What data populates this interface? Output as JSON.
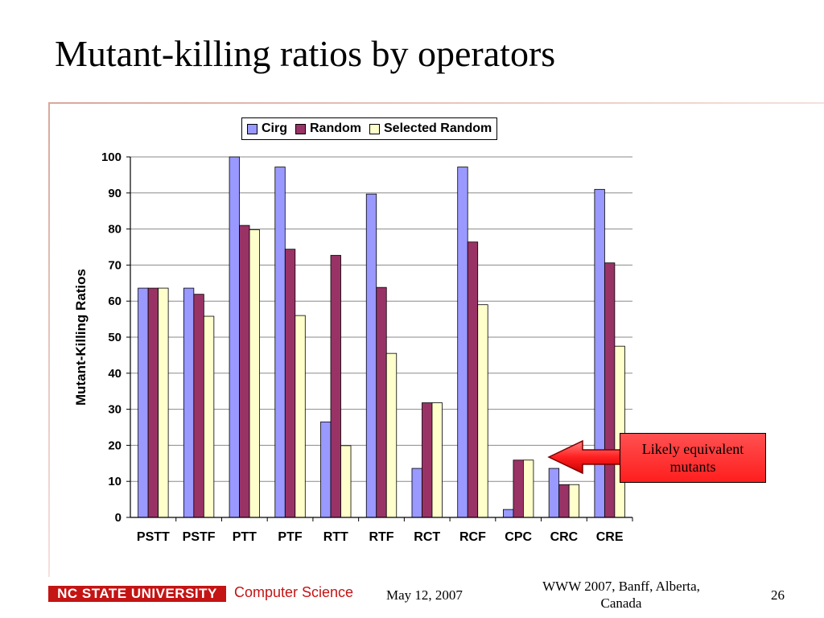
{
  "slide": {
    "title": "Mutant-killing ratios by operators"
  },
  "chart_data": {
    "type": "bar",
    "title": "",
    "xlabel": "",
    "ylabel": "Mutant-Killing Ratios",
    "ylim": [
      0,
      100
    ],
    "yticks": [
      0,
      10,
      20,
      30,
      40,
      50,
      60,
      70,
      80,
      90,
      100
    ],
    "grid": true,
    "legend_position": "top",
    "categories": [
      "PSTT",
      "PSTF",
      "PTT",
      "PTF",
      "RTT",
      "RTF",
      "RCT",
      "RCF",
      "CPC",
      "CRC",
      "CRE"
    ],
    "series": [
      {
        "name": "Cirg",
        "color": "#9999ff",
        "values": [
          63.6,
          63.6,
          100,
          97.2,
          26.5,
          89.7,
          13.6,
          97.2,
          2.2,
          13.6,
          91
        ]
      },
      {
        "name": "Random",
        "color": "#993366",
        "values": [
          63.6,
          61.9,
          81,
          74.4,
          72.7,
          63.8,
          31.8,
          76.4,
          15.9,
          9.1,
          70.6
        ]
      },
      {
        "name": "Selected Random",
        "color": "#ffffcc",
        "values": [
          63.6,
          55.8,
          79.8,
          56,
          19.9,
          45.5,
          31.8,
          59,
          15.9,
          9.1,
          47.5
        ]
      }
    ]
  },
  "callout": {
    "text": "Likely equivalent mutants"
  },
  "footer": {
    "logo": "NC STATE UNIVERSITY",
    "department": "Computer Science",
    "date": "May 12, 2007",
    "conference": "WWW 2007, Banff, Alberta, Canada",
    "page": "26"
  }
}
